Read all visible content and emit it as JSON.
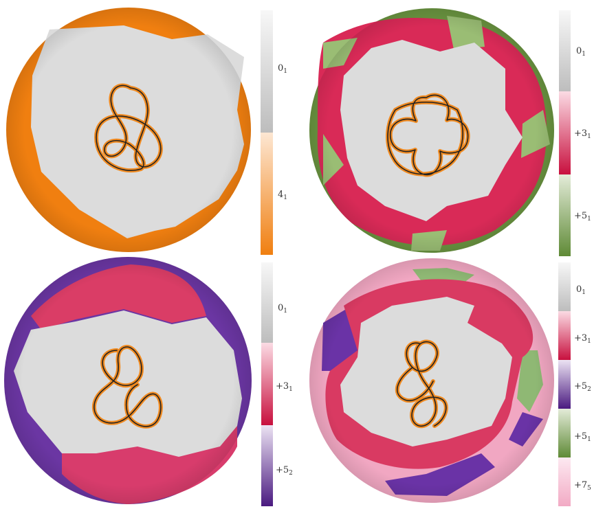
{
  "colors": {
    "unknot_gray": "#d9d9d9",
    "knot_4_1_orange": "#f07f10",
    "knot_3_1_crimson": "#d6244f",
    "knot_5_1_green": "#5f8a36",
    "knot_5_2_purple": "#5b2390",
    "knot_7_5_pink": "#f2aac4",
    "rope_orange": "#f08a20",
    "rope_core": "#222222"
  },
  "panels": [
    {
      "id": "top-left",
      "knot_shape": "figure-eight",
      "colorbar": [
        {
          "label": "0",
          "sub": "1",
          "color": "#c8c8c8"
        },
        {
          "label": "4",
          "sub": "1",
          "color": "#f07f10"
        }
      ]
    },
    {
      "id": "top-right",
      "knot_shape": "pentafoil",
      "colorbar": [
        {
          "label": "0",
          "sub": "1",
          "color": "#c8c8c8"
        },
        {
          "label": "+3",
          "sub": "1",
          "color": "#c8103e"
        },
        {
          "label": "+5",
          "sub": "1",
          "color": "#5f8a36"
        }
      ]
    },
    {
      "id": "bottom-left",
      "knot_shape": "three-twist",
      "colorbar": [
        {
          "label": "0",
          "sub": "1",
          "color": "#c8c8c8"
        },
        {
          "label": "+3",
          "sub": "1",
          "color": "#c8103e"
        },
        {
          "label": "+5",
          "sub": "2",
          "color": "#4a1a80"
        }
      ]
    },
    {
      "id": "bottom-right",
      "knot_shape": "seven-crossing",
      "colorbar": [
        {
          "label": "0",
          "sub": "1",
          "color": "#c8c8c8"
        },
        {
          "label": "+3",
          "sub": "1",
          "color": "#c8103e"
        },
        {
          "label": "+5",
          "sub": "2",
          "color": "#4a1a80"
        },
        {
          "label": "+5",
          "sub": "1",
          "color": "#5f8a36"
        },
        {
          "label": "+7",
          "sub": "5",
          "color": "#f2aac4"
        }
      ]
    }
  ]
}
